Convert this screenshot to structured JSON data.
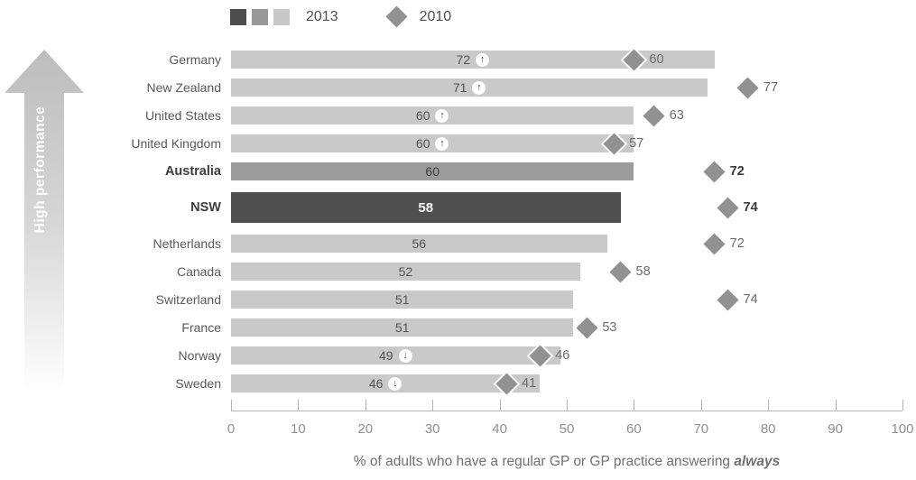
{
  "legend": {
    "year_2013_label": "2013",
    "year_2010_label": "2010"
  },
  "annotation": {
    "high_performance_label": "High performance"
  },
  "colors": {
    "bar_light": "#c9c9c9",
    "bar_medium": "#9c9c9c",
    "bar_dark": "#4f4f4f",
    "diamond": "#919191",
    "swatches": [
      "#4d4d4d",
      "#999999",
      "#c8c8c8"
    ]
  },
  "chart_data": {
    "type": "bar",
    "orientation": "horizontal",
    "title": "",
    "xlabel_prefix": "% of adults who have a regular GP or GP practice answering ",
    "xlabel_emphasis": "always",
    "xlim": [
      0,
      100
    ],
    "xticks": [
      0,
      10,
      20,
      30,
      40,
      50,
      60,
      70,
      80,
      90,
      100
    ],
    "grid": false,
    "legend_position": "top",
    "series_info": [
      {
        "name": "2013",
        "marker": "bar"
      },
      {
        "name": "2010",
        "marker": "diamond"
      }
    ],
    "rows": [
      {
        "label": "Germany",
        "value_2013": 72,
        "trend": "up",
        "value_2010": 60,
        "bold": false,
        "shade": "light"
      },
      {
        "label": "New Zealand",
        "value_2013": 71,
        "trend": "up",
        "value_2010": 77,
        "bold": false,
        "shade": "light"
      },
      {
        "label": "United States",
        "value_2013": 60,
        "trend": "up",
        "value_2010": 63,
        "bold": false,
        "shade": "light"
      },
      {
        "label": "United Kingdom",
        "value_2013": 60,
        "trend": "up",
        "value_2010": 57,
        "bold": false,
        "shade": "light"
      },
      {
        "label": "Australia",
        "value_2013": 60,
        "trend": null,
        "value_2010": 72,
        "bold": true,
        "shade": "medium"
      },
      {
        "label": "NSW",
        "value_2013": 58,
        "trend": null,
        "value_2010": 74,
        "bold": true,
        "shade": "dark"
      },
      {
        "label": "Netherlands",
        "value_2013": 56,
        "trend": null,
        "value_2010": 72,
        "bold": false,
        "shade": "light"
      },
      {
        "label": "Canada",
        "value_2013": 52,
        "trend": null,
        "value_2010": 58,
        "bold": false,
        "shade": "light"
      },
      {
        "label": "Switzerland",
        "value_2013": 51,
        "trend": null,
        "value_2010": 74,
        "bold": false,
        "shade": "light"
      },
      {
        "label": "France",
        "value_2013": 51,
        "trend": null,
        "value_2010": 53,
        "bold": false,
        "shade": "light"
      },
      {
        "label": "Norway",
        "value_2013": 49,
        "trend": "down",
        "value_2010": 46,
        "bold": false,
        "shade": "light"
      },
      {
        "label": "Sweden",
        "value_2013": 46,
        "trend": "down",
        "value_2010": 41,
        "bold": false,
        "shade": "light"
      }
    ]
  }
}
